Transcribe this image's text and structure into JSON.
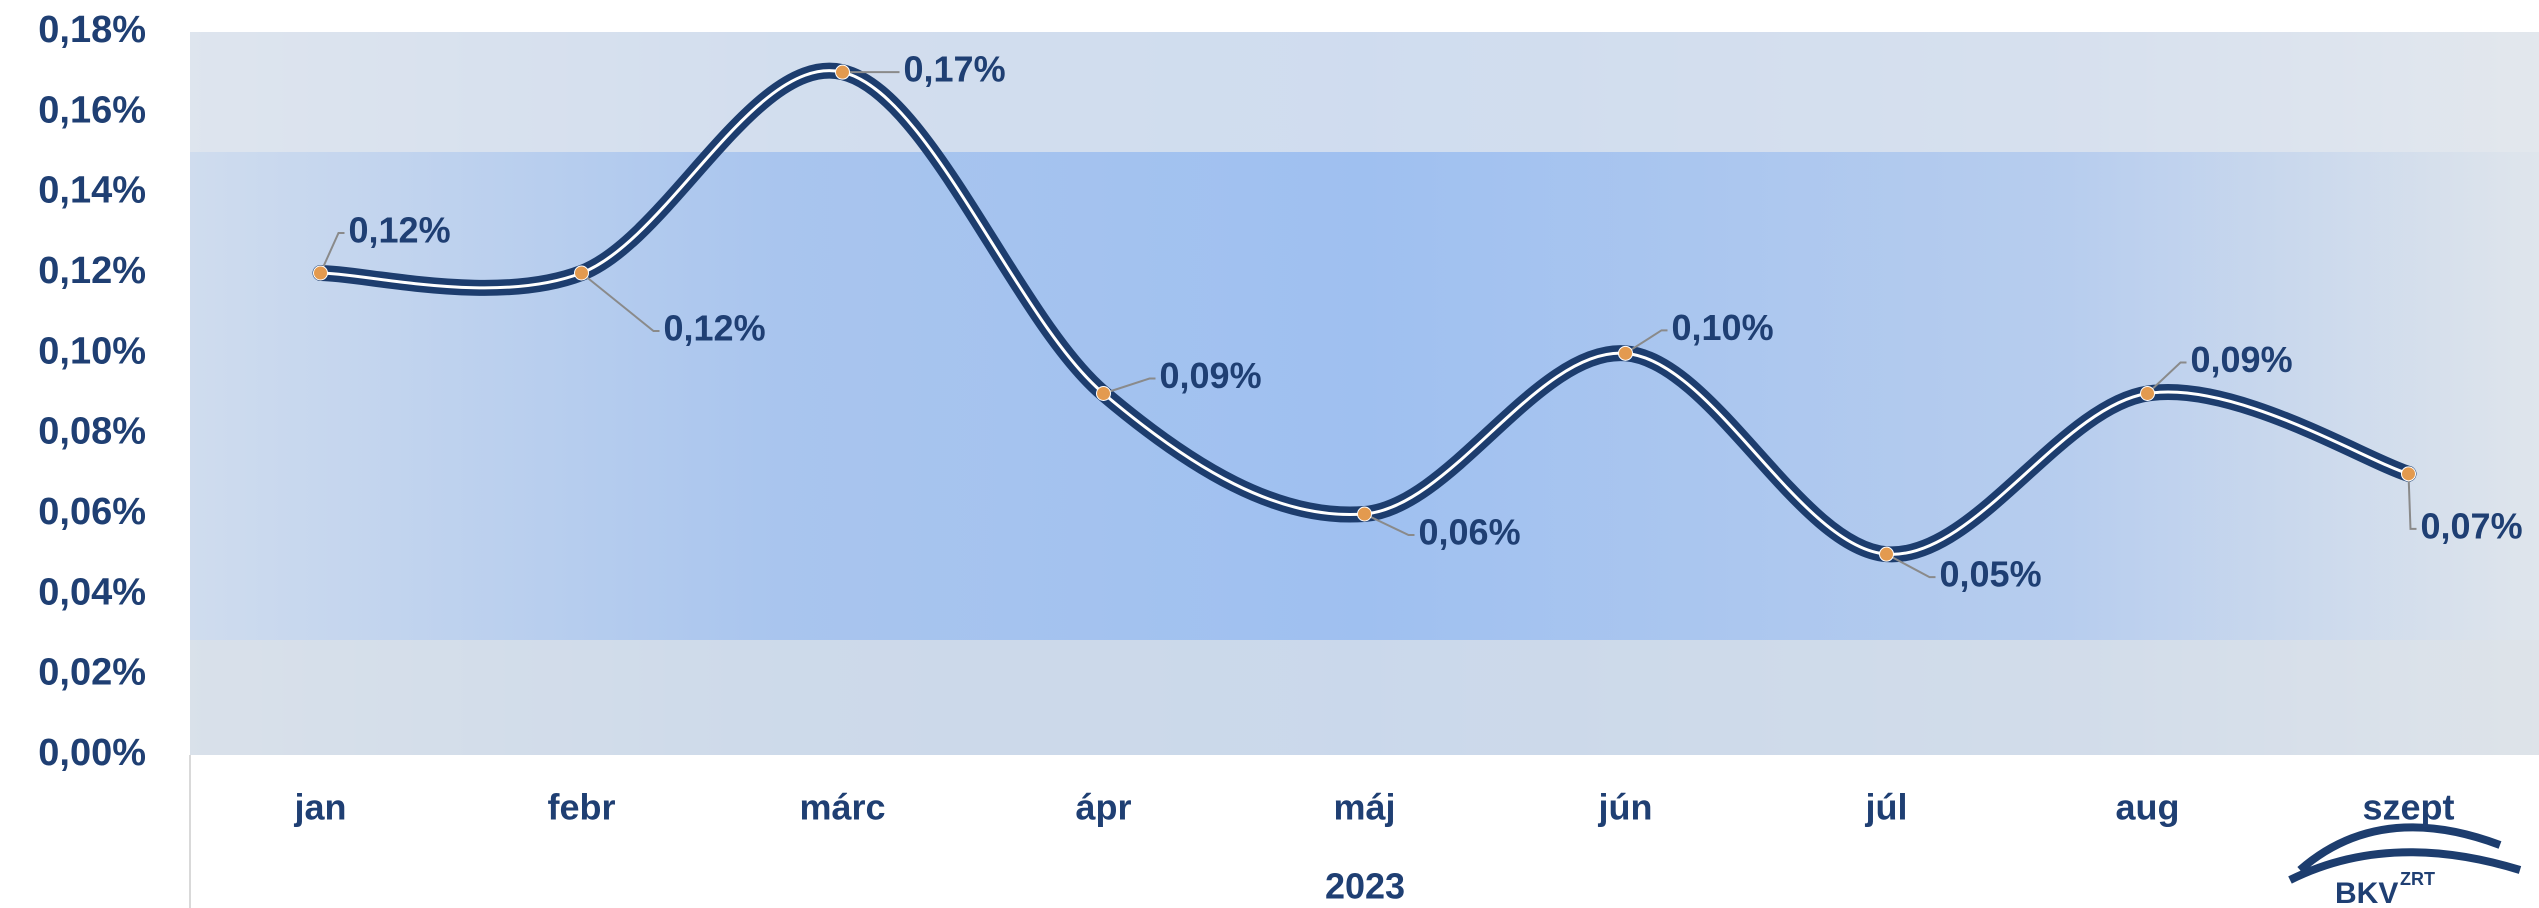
{
  "chart_data": {
    "type": "line",
    "x_label": "2023",
    "categories": [
      "jan",
      "febr",
      "márc",
      "ápr",
      "máj",
      "jún",
      "júl",
      "aug",
      "szept"
    ],
    "series": [
      {
        "color": "#1d3d6e",
        "values": [
          0.12,
          0.12,
          0.17,
          0.09,
          0.06,
          0.1,
          0.05,
          0.09,
          0.07
        ],
        "value_labels": [
          "0,12%",
          "0,12%",
          "0,17%",
          "0,09%",
          "0,06%",
          "0,10%",
          "0,05%",
          "0,09%",
          "0,07%"
        ]
      }
    ],
    "marker_color": "#e39a4f",
    "ylim": [
      0,
      0.18
    ],
    "yticks": [
      {
        "value": 0,
        "label": "0,00%"
      },
      {
        "value": 0.02,
        "label": "0,02%"
      },
      {
        "value": 0.04,
        "label": "0,04%"
      },
      {
        "value": 0.06,
        "label": "0,06%"
      },
      {
        "value": 0.08,
        "label": "0,08%"
      },
      {
        "value": 0.1,
        "label": "0,10%"
      },
      {
        "value": 0.12,
        "label": "0,12%"
      },
      {
        "value": 0.14,
        "label": "0,14%"
      },
      {
        "value": 0.16,
        "label": "0,16%"
      },
      {
        "value": 0.18,
        "label": "0,18%"
      }
    ]
  },
  "logo": {
    "text": "BKV",
    "sup": "ZRT"
  }
}
